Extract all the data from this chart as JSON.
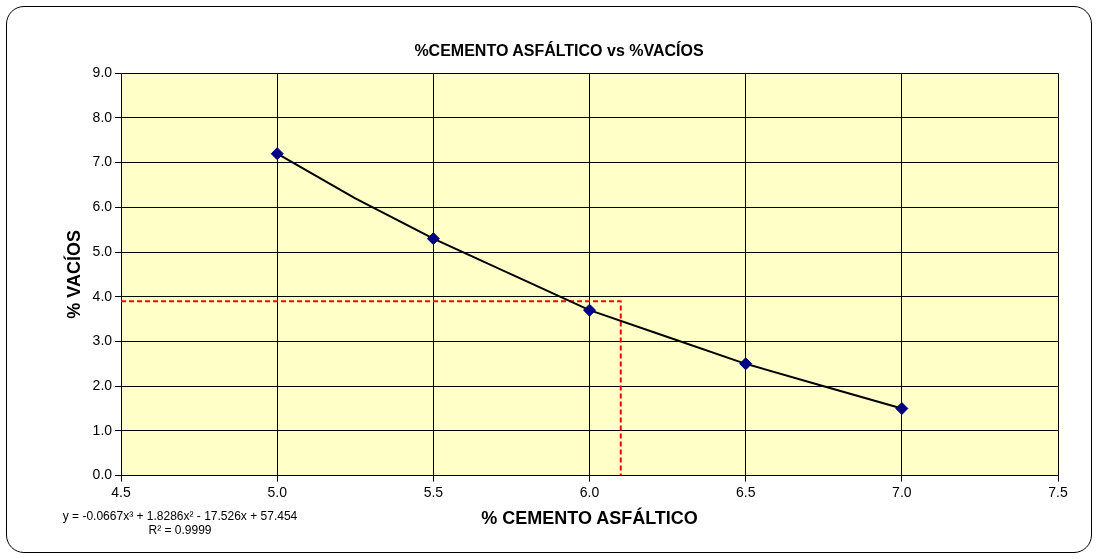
{
  "chart_data": {
    "type": "scatter",
    "title": "%CEMENTO ASFÁLTICO vs %VACÍOS",
    "xlabel": "% CEMENTO ASFÁLTICO",
    "ylabel": "% VACÍOS",
    "xlim": [
      4.5,
      7.5
    ],
    "xticks": [
      {
        "value": 4.5,
        "label": "4.5"
      },
      {
        "value": 5,
        "label": "5.0"
      },
      {
        "value": 5.5,
        "label": "5.5"
      },
      {
        "value": 6,
        "label": "6.0"
      },
      {
        "value": 6.5,
        "label": "6.5"
      },
      {
        "value": 7,
        "label": "7.0"
      },
      {
        "value": 7.5,
        "label": "7.5"
      }
    ],
    "ylim": [
      0,
      9
    ],
    "yticks": [
      {
        "value": 0,
        "label": "0.0"
      },
      {
        "value": 1,
        "label": "1.0"
      },
      {
        "value": 2,
        "label": "2.0"
      },
      {
        "value": 3,
        "label": "3.0"
      },
      {
        "value": 4,
        "label": "4.0"
      },
      {
        "value": 5,
        "label": "5.0"
      },
      {
        "value": 6,
        "label": "6.0"
      },
      {
        "value": 7,
        "label": "7.0"
      },
      {
        "value": 8,
        "label": "8.0"
      },
      {
        "value": 9,
        "label": "9.0"
      }
    ],
    "grid": true,
    "legend": false,
    "marker": "diamond",
    "series": [
      {
        "type": "line",
        "color": "#000000",
        "marker": "none",
        "x": [
          5,
          5.25,
          5.5,
          5.75,
          6,
          6.25,
          6.5,
          6.75,
          7
        ],
        "values": [
          7.2,
          6.2,
          5.3,
          4.5,
          3.7,
          3.1,
          2.5,
          2.0,
          1.5
        ]
      },
      {
        "type": "line",
        "color": "#ff0000",
        "marker": "none",
        "line_style": "dashed",
        "x": [
          4.5,
          6.1,
          6.1
        ],
        "values": [
          3.9,
          3.9,
          0
        ]
      },
      {
        "type": "scatter",
        "color": "#000080",
        "x": [
          5,
          5.5,
          6,
          6.5,
          7
        ],
        "values": [
          7.2,
          5.3,
          3.7,
          2.5,
          1.5
        ]
      }
    ],
    "annotations": [
      "y = -0.0667x³ + 1.8286x² - 17.526x + 57.454",
      "R² = 0.9999"
    ]
  }
}
